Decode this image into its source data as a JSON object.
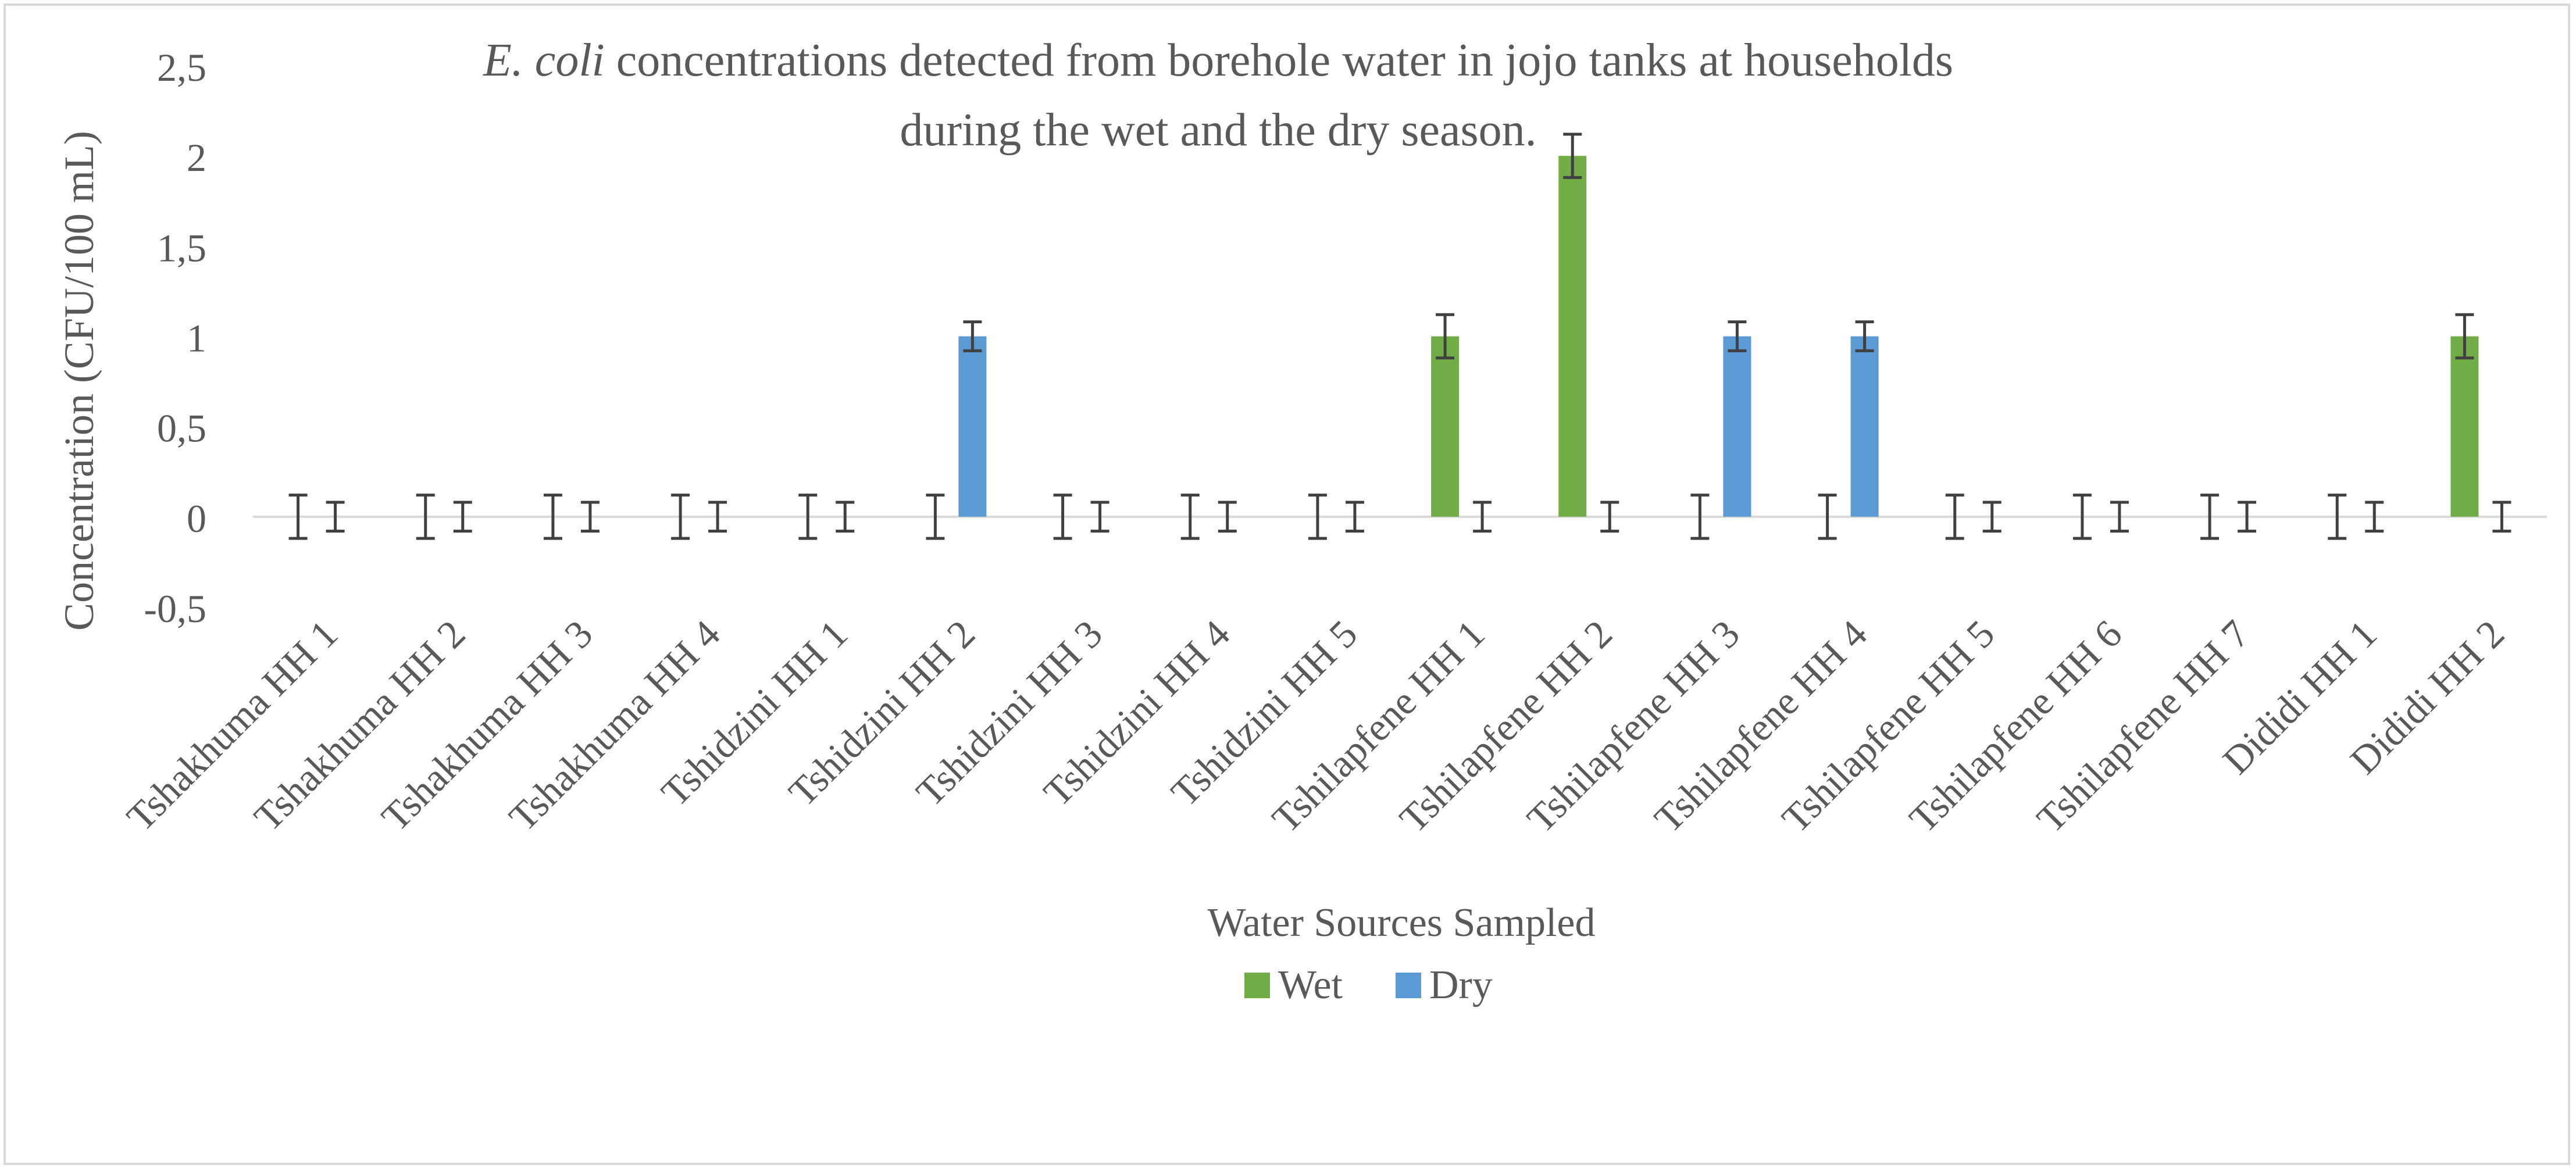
{
  "chart_data": {
    "type": "bar",
    "title_italic": "E. coli",
    "title_rest": " concentrations detected from borehole water in jojo tanks at households",
    "title_line2": "during the wet and the dry season.",
    "xlabel": "Water Sources Sampled",
    "ylabel": "Concentration (CFU/100 mL)",
    "ylim": [
      -0.5,
      2.5
    ],
    "yticks": [
      2.5,
      2,
      1.5,
      1,
      0.5,
      0,
      -0.5
    ],
    "ytick_labels": [
      "2,5",
      "2",
      "1,5",
      "1",
      "0,5",
      "0",
      "-0,5"
    ],
    "categories": [
      "Tshakhuma HH 1",
      "Tshakhuma HH 2",
      "Tshakhuma HH 3",
      "Tshakhuma HH 4",
      "Tshidzini HH 1",
      "Tshidzini HH 2",
      "Tshidzini HH 3",
      "Tshidzini HH 4",
      "Tshidzini HH 5",
      "Tshilapfene HH 1",
      "Tshilapfene HH 2",
      "Tshilapfene HH 3",
      "Tshilapfene HH 4",
      "Tshilapfene HH 5",
      "Tshilapfene HH 6",
      "Tshilapfene HH 7",
      "Dididi HH 1",
      "Dididi HH 2"
    ],
    "series": [
      {
        "name": "Wet",
        "color": "#70ad47",
        "values": [
          0,
          0,
          0,
          0,
          0,
          0,
          0,
          0,
          0,
          1,
          2,
          0,
          0,
          0,
          0,
          0,
          0,
          1
        ],
        "errors": [
          0.12,
          0.12,
          0.12,
          0.12,
          0.12,
          0.12,
          0.12,
          0.12,
          0.12,
          0.12,
          0.12,
          0.12,
          0.12,
          0.12,
          0.12,
          0.12,
          0.12,
          0.12
        ]
      },
      {
        "name": "Dry",
        "color": "#5b9bd5",
        "values": [
          0,
          0,
          0,
          0,
          0,
          1,
          0,
          0,
          0,
          0,
          0,
          1,
          1,
          0,
          0,
          0,
          0,
          0
        ],
        "errors": [
          0.08,
          0.08,
          0.08,
          0.08,
          0.08,
          0.08,
          0.08,
          0.08,
          0.08,
          0.08,
          0.08,
          0.08,
          0.08,
          0.08,
          0.08,
          0.08,
          0.08,
          0.08
        ]
      }
    ],
    "legend": [
      "Wet",
      "Dry"
    ],
    "legend_position": "bottom"
  }
}
